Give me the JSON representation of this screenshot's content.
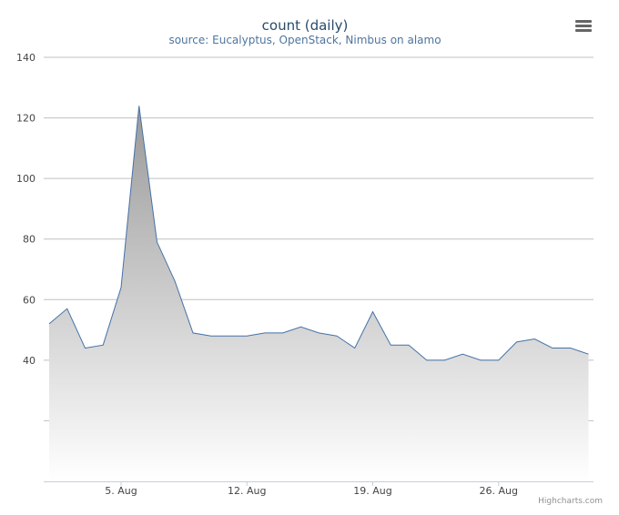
{
  "chart_data": {
    "type": "area",
    "title": "count (daily)",
    "subtitle": "source: Eucalyptus, OpenStack, Nimbus on alamo",
    "x": [
      "Aug 1",
      "Aug 2",
      "Aug 3",
      "Aug 4",
      "Aug 5",
      "Aug 6",
      "Aug 7",
      "Aug 8",
      "Aug 9",
      "Aug 10",
      "Aug 11",
      "Aug 12",
      "Aug 13",
      "Aug 14",
      "Aug 15",
      "Aug 16",
      "Aug 17",
      "Aug 18",
      "Aug 19",
      "Aug 20",
      "Aug 21",
      "Aug 22",
      "Aug 23",
      "Aug 24",
      "Aug 25",
      "Aug 26",
      "Aug 27",
      "Aug 28",
      "Aug 29",
      "Aug 30",
      "Aug 31"
    ],
    "series": [
      {
        "values": [
          52,
          57,
          44,
          45,
          64,
          124,
          79,
          66,
          49,
          48,
          48,
          48,
          49,
          49,
          51,
          49,
          48,
          44,
          56,
          45,
          45,
          40,
          40,
          42,
          40,
          40,
          46,
          47,
          44,
          44,
          42
        ]
      }
    ],
    "xticks": [
      "5. Aug",
      "12. Aug",
      "19. Aug",
      "26. Aug"
    ],
    "xtick_positions": [
      5,
      12,
      19,
      26
    ],
    "yticks": [
      "140",
      "120",
      "100",
      "80",
      "60",
      "40",
      ""
    ],
    "ytick_values": [
      140,
      120,
      100,
      80,
      60,
      40,
      20
    ],
    "ylim": [
      0,
      140
    ],
    "grid": true,
    "legend": "none",
    "colors": {
      "line": "#4572a7",
      "area_top": "#999999",
      "area_bottom": "#ffffff",
      "grid": "#c0c0c0"
    }
  },
  "menu_icon": "hamburger-menu-icon",
  "credits": "Highcharts.com"
}
